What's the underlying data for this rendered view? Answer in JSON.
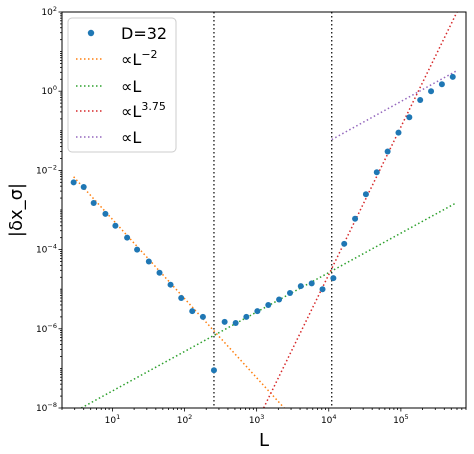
{
  "chart_data": {
    "type": "scatter",
    "xlabel": "L",
    "ylabel": "|δx_σ|",
    "xscale": "log",
    "yscale": "log",
    "xlim": [
      2,
      800000
    ],
    "ylim": [
      1e-08,
      100
    ],
    "grid": false,
    "legend_position": "top-left",
    "x_ticks": [
      10,
      100,
      1000,
      10000,
      100000
    ],
    "x_tick_labels": [
      {
        "base": "10",
        "exp": "1"
      },
      {
        "base": "10",
        "exp": "2"
      },
      {
        "base": "10",
        "exp": "3"
      },
      {
        "base": "10",
        "exp": "4"
      },
      {
        "base": "10",
        "exp": "5"
      }
    ],
    "y_ticks": [
      1e-08,
      1e-06,
      0.0001,
      0.01,
      1,
      100
    ],
    "y_tick_labels": [
      {
        "base": "10",
        "exp": "−8"
      },
      {
        "base": "10",
        "exp": "−6"
      },
      {
        "base": "10",
        "exp": "−4"
      },
      {
        "base": "10",
        "exp": "−2"
      },
      {
        "base": "10",
        "exp": "0"
      },
      {
        "base": "10",
        "exp": "2"
      }
    ],
    "vertical_lines": [
      256,
      11000
    ],
    "series": [
      {
        "name": "D=32",
        "kind": "markers",
        "color": "#1f77b4",
        "x": [
          2.9,
          4,
          5.5,
          8,
          11,
          16,
          22,
          32,
          45,
          64,
          90,
          128,
          180,
          256,
          360,
          512,
          720,
          1024,
          1450,
          2048,
          2900,
          4096,
          5800,
          8192,
          11585,
          16384,
          23170,
          32768,
          46340,
          65536,
          92680,
          131072,
          185360,
          262144,
          370720,
          524288
        ],
        "y": [
          0.005,
          0.0038,
          0.0015,
          0.0008,
          0.0004,
          0.0002,
          0.0001,
          5e-05,
          2.6e-05,
          1.3e-05,
          6e-06,
          2.8e-06,
          2e-06,
          9e-08,
          1.5e-06,
          1.4e-06,
          2e-06,
          2.8e-06,
          4e-06,
          5.5e-06,
          8e-06,
          1.2e-05,
          1.4e-05,
          1e-05,
          1.9e-05,
          0.00014,
          0.0006,
          0.0025,
          0.009,
          0.03,
          0.09,
          0.22,
          0.6,
          1.0,
          1.5,
          2.3
        ]
      },
      {
        "name_text": "∝L",
        "name_sup": "−2",
        "kind": "line",
        "color": "#ff7f0e",
        "x": [
          2.9,
          2500
        ],
        "y": [
          0.0069,
          9.3e-09
        ]
      },
      {
        "name_text": "∝L",
        "name_sup": "",
        "kind": "line",
        "color": "#2ca02c",
        "x": [
          3.7,
          580000
        ],
        "y": [
          1e-08,
          0.0015
        ]
      },
      {
        "name_text": "∝L",
        "name_sup": "3.75",
        "kind": "line",
        "color": "#d62728",
        "x": [
          1250,
          600000
        ],
        "y": [
          1e-08,
          100
        ]
      },
      {
        "name_text": "∝L",
        "name_sup": "",
        "kind": "line",
        "color": "#9467bd",
        "x": [
          11000,
          580000
        ],
        "y": [
          0.06,
          3.2
        ]
      }
    ]
  }
}
